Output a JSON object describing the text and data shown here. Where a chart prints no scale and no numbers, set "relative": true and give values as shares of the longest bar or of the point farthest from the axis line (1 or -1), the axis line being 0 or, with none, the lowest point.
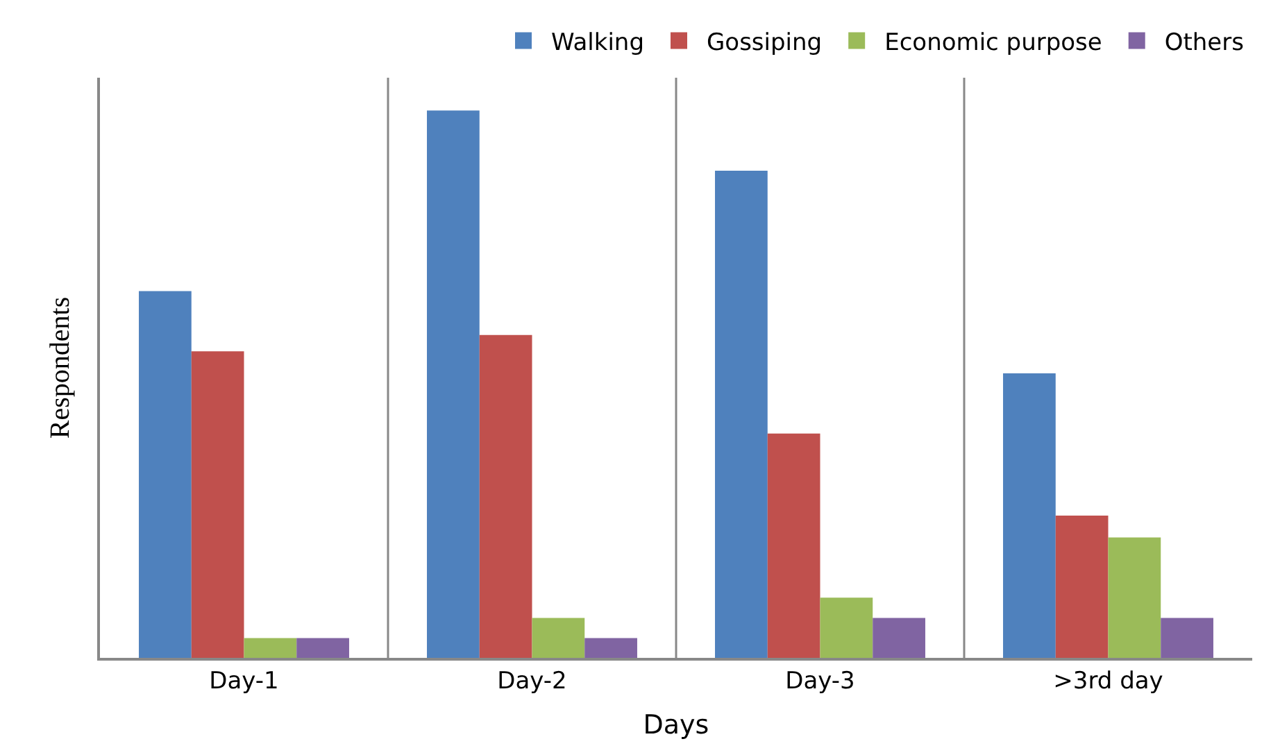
{
  "chart_data": {
    "type": "bar",
    "xlabel": "Days",
    "ylabel": "Respondents",
    "relative": true,
    "grid": "x",
    "legend": "top",
    "categories": [
      "Day-1",
      "Day-2",
      "Day-3",
      ">3rd day"
    ],
    "series": [
      {
        "name": "Walking",
        "color": "#4f81bd",
        "values": [
          0.67,
          1,
          0.89,
          0.52
        ]
      },
      {
        "name": "Gossiping",
        "color": "#c0504d",
        "values": [
          0.56,
          0.59,
          0.41,
          0.26
        ]
      },
      {
        "name": "Economic purpose",
        "color": "#9bbb59",
        "values": [
          0.036,
          0.073,
          0.11,
          0.22
        ]
      },
      {
        "name": "Others",
        "color": "#8064a2",
        "values": [
          0.036,
          0.036,
          0.073,
          0.073
        ]
      }
    ]
  }
}
